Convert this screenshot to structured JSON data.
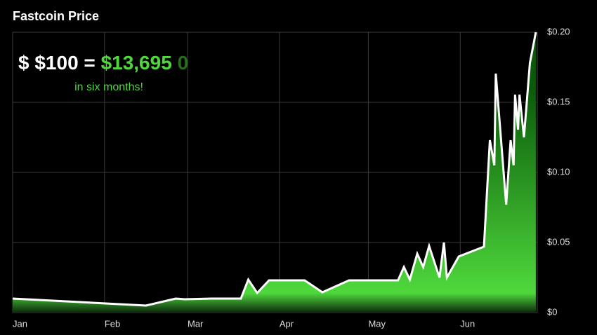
{
  "chart_data": {
    "type": "area",
    "title": "Fastcoin Price",
    "annotation": {
      "prefix": "$ $100 =",
      "amount": "$13,695",
      "trailing": "0",
      "note": "in six months!"
    },
    "x": [
      0,
      45,
      55,
      58,
      67,
      77,
      79.5,
      82.5,
      86.5,
      98.5,
      104.5,
      113.5,
      130,
      132,
      134,
      136.5,
      138.5,
      140.5,
      144,
      145.5,
      146.5,
      150.5,
      159,
      161,
      162.5,
      163,
      166.5,
      168,
      169,
      169.5,
      170.5,
      171,
      172.5,
      174.5,
      176.5
    ],
    "values": [
      0.01,
      0.005,
      0.01,
      0.0095,
      0.01,
      0.01,
      0.0235,
      0.014,
      0.023,
      0.023,
      0.0145,
      0.023,
      0.023,
      0.0325,
      0.0235,
      0.042,
      0.0325,
      0.0475,
      0.025,
      0.05,
      0.025,
      0.04,
      0.047,
      0.123,
      0.105,
      0.1705,
      0.077,
      0.123,
      0.105,
      0.1555,
      0.1305,
      0.1555,
      0.125,
      0.178,
      0.2
    ],
    "line_color": "#ffffff",
    "fill_top": "#0a5a0a",
    "fill_bottom": "#4fd83c",
    "xlim": [
      0,
      177
    ],
    "xticks": [
      {
        "value": 0,
        "label": "Jan"
      },
      {
        "value": 31,
        "label": "Feb"
      },
      {
        "value": 59,
        "label": "Mar"
      },
      {
        "value": 90,
        "label": "Apr"
      },
      {
        "value": 120,
        "label": "May"
      },
      {
        "value": 151,
        "label": "Jun"
      }
    ],
    "ylim": [
      0,
      0.2
    ],
    "yticks": [
      {
        "value": 0,
        "label": "$0"
      },
      {
        "value": 0.05,
        "label": "$0.05"
      },
      {
        "value": 0.1,
        "label": "$0.10"
      },
      {
        "value": 0.15,
        "label": "$0.15"
      },
      {
        "value": 0.2,
        "label": "$0.20"
      }
    ],
    "grid": true
  }
}
